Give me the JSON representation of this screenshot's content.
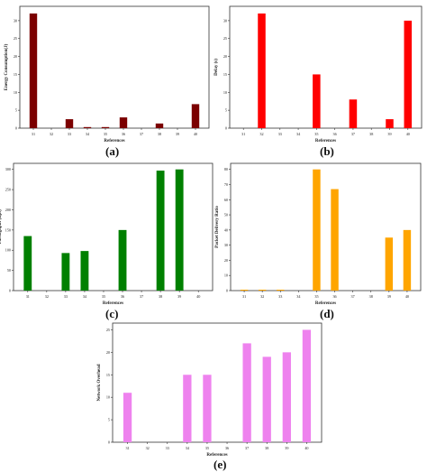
{
  "chart_data": [
    {
      "type": "bar",
      "panel_label": "(a)",
      "xlabel": "References",
      "ylabel": "Energy Consumption(J)",
      "categories": [
        "31",
        "32",
        "33",
        "34",
        "35",
        "36",
        "37",
        "38",
        "39",
        "40"
      ],
      "values": [
        32,
        0,
        2.5,
        0.3,
        0.3,
        3,
        0,
        1.3,
        0,
        6.7
      ],
      "yticks": [
        0,
        5,
        10,
        15,
        20,
        25,
        30
      ],
      "ylim": [
        0,
        34
      ],
      "color": "#7b0000",
      "grid": false
    },
    {
      "type": "bar",
      "panel_label": "(b)",
      "xlabel": "References",
      "ylabel": "Delay (s)",
      "categories": [
        "31",
        "32",
        "33",
        "34",
        "35",
        "36",
        "37",
        "38",
        "39",
        "40"
      ],
      "values": [
        0,
        32,
        0,
        0,
        15,
        0,
        8,
        0,
        2.5,
        30
      ],
      "yticks": [
        0,
        5,
        10,
        15,
        20,
        25,
        30
      ],
      "ylim": [
        0,
        34
      ],
      "color": "#ff0000",
      "grid": false
    },
    {
      "type": "bar",
      "panel_label": "(c)",
      "xlabel": "References",
      "ylabel": "Throughput (Bps)",
      "categories": [
        "31",
        "32",
        "33",
        "34",
        "35",
        "36",
        "37",
        "38",
        "39",
        "40"
      ],
      "values": [
        135,
        0,
        93,
        98,
        0,
        150,
        0,
        297,
        300,
        0
      ],
      "yticks": [
        0,
        50,
        100,
        150,
        200,
        250,
        300
      ],
      "ylim": [
        0,
        315
      ],
      "color": "#008000",
      "grid": false
    },
    {
      "type": "bar",
      "panel_label": "(d)",
      "xlabel": "References",
      "ylabel": "Packet Delivery Ratio",
      "categories": [
        "31",
        "32",
        "33",
        "34",
        "35",
        "36",
        "37",
        "38",
        "39",
        "40"
      ],
      "values": [
        0.6,
        0.6,
        0.6,
        0,
        80,
        67,
        0,
        0,
        35,
        40
      ],
      "yticks": [
        0,
        10,
        20,
        30,
        40,
        50,
        60,
        70,
        80
      ],
      "ylim": [
        0,
        84
      ],
      "color": "#ffa500",
      "grid": false
    },
    {
      "type": "bar",
      "panel_label": "(e)",
      "xlabel": "References",
      "ylabel": "Network Overhead",
      "categories": [
        "31",
        "32",
        "33",
        "34",
        "35",
        "36",
        "37",
        "38",
        "39",
        "40"
      ],
      "values": [
        11,
        0,
        0,
        15,
        15,
        0,
        22,
        19,
        20,
        25
      ],
      "yticks": [
        0,
        5,
        10,
        15,
        20,
        25
      ],
      "ylim": [
        0,
        26.5
      ],
      "color": "#ee82ee",
      "grid": false
    }
  ]
}
